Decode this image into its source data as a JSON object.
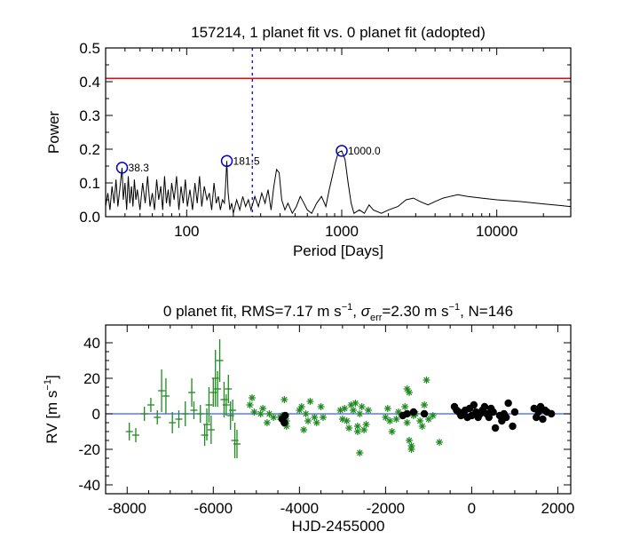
{
  "colors": {
    "threshold": "#ff0000",
    "fap_line": "#0000ff",
    "peak_circle": "#0000cc",
    "zero_line": "#3b5bff",
    "rv_green": "#1e8a1e",
    "rv_black": "#000000"
  },
  "chart_data": [
    {
      "type": "line",
      "title": "157214,  1 planet fit vs. 0 planet fit (adopted)",
      "xlabel": "Period [Days]",
      "ylabel": "Power",
      "xscale": "log",
      "xlim": [
        30,
        30000
      ],
      "ylim": [
        0.0,
        0.5
      ],
      "xticks": [
        100,
        1000,
        10000
      ],
      "xtick_labels": [
        "100",
        "1000",
        "10000"
      ],
      "yticks": [
        0.0,
        0.1,
        0.2,
        0.3,
        0.4,
        0.5
      ],
      "ytick_labels": [
        "0.0",
        "0.1",
        "0.2",
        "0.3",
        "0.4",
        "0.5"
      ],
      "threshold_power": 0.41,
      "vline_period": 265,
      "peaks": [
        {
          "period": 38.3,
          "power": 0.145,
          "label": "38.3"
        },
        {
          "period": 181.5,
          "power": 0.165,
          "label": "181.5"
        },
        {
          "period": 1000.0,
          "power": 0.195,
          "label": "1000.0"
        }
      ],
      "periodogram": [
        [
          30,
          0.03
        ],
        [
          31,
          0.07
        ],
        [
          32,
          0.02
        ],
        [
          33,
          0.09
        ],
        [
          34,
          0.04
        ],
        [
          35,
          0.11
        ],
        [
          36,
          0.03
        ],
        [
          37,
          0.08
        ],
        [
          38.3,
          0.145
        ],
        [
          39,
          0.05
        ],
        [
          40,
          0.1
        ],
        [
          41,
          0.02
        ],
        [
          42,
          0.12
        ],
        [
          43,
          0.04
        ],
        [
          44,
          0.09
        ],
        [
          45,
          0.03
        ],
        [
          46,
          0.11
        ],
        [
          47,
          0.05
        ],
        [
          48,
          0.08
        ],
        [
          50,
          0.02
        ],
        [
          52,
          0.1
        ],
        [
          54,
          0.04
        ],
        [
          56,
          0.12
        ],
        [
          58,
          0.03
        ],
        [
          60,
          0.07
        ],
        [
          62,
          0.02
        ],
        [
          64,
          0.11
        ],
        [
          66,
          0.05
        ],
        [
          68,
          0.09
        ],
        [
          70,
          0.02
        ],
        [
          72,
          0.12
        ],
        [
          74,
          0.04
        ],
        [
          76,
          0.08
        ],
        [
          78,
          0.03
        ],
        [
          80,
          0.1
        ],
        [
          83,
          0.05
        ],
        [
          86,
          0.12
        ],
        [
          89,
          0.02
        ],
        [
          92,
          0.09
        ],
        [
          95,
          0.04
        ],
        [
          98,
          0.11
        ],
        [
          101,
          0.03
        ],
        [
          105,
          0.08
        ],
        [
          109,
          0.02
        ],
        [
          113,
          0.1
        ],
        [
          117,
          0.04
        ],
        [
          121,
          0.12
        ],
        [
          125,
          0.03
        ],
        [
          130,
          0.09
        ],
        [
          135,
          0.05
        ],
        [
          140,
          0.07
        ],
        [
          145,
          0.02
        ],
        [
          150,
          0.1
        ],
        [
          155,
          0.04
        ],
        [
          160,
          0.06
        ],
        [
          165,
          0.02
        ],
        [
          170,
          0.05
        ],
        [
          175,
          0.04
        ],
        [
          178,
          0.09
        ],
        [
          181.5,
          0.165
        ],
        [
          185,
          0.07
        ],
        [
          190,
          0.02
        ],
        [
          195,
          0.04
        ],
        [
          200,
          0.01
        ],
        [
          210,
          0.05
        ],
        [
          220,
          0.02
        ],
        [
          230,
          0.06
        ],
        [
          240,
          0.03
        ],
        [
          250,
          0.05
        ],
        [
          260,
          0.02
        ],
        [
          275,
          0.06
        ],
        [
          290,
          0.03
        ],
        [
          305,
          0.07
        ],
        [
          320,
          0.04
        ],
        [
          335,
          0.08
        ],
        [
          350,
          0.02
        ],
        [
          365,
          0.09
        ],
        [
          380,
          0.14
        ],
        [
          395,
          0.13
        ],
        [
          410,
          0.05
        ],
        [
          430,
          0.02
        ],
        [
          450,
          0.04
        ],
        [
          480,
          0.01
        ],
        [
          510,
          0.03
        ],
        [
          540,
          0.06
        ],
        [
          570,
          0.04
        ],
        [
          600,
          0.02
        ],
        [
          640,
          0.01
        ],
        [
          690,
          0.04
        ],
        [
          740,
          0.06
        ],
        [
          790,
          0.03
        ],
        [
          830,
          0.08
        ],
        [
          870,
          0.12
        ],
        [
          910,
          0.16
        ],
        [
          950,
          0.19
        ],
        [
          1000,
          0.195
        ],
        [
          1050,
          0.17
        ],
        [
          1100,
          0.1
        ],
        [
          1150,
          0.04
        ],
        [
          1200,
          0.01
        ],
        [
          1300,
          0.02
        ],
        [
          1400,
          0.01
        ],
        [
          1500,
          0.035
        ],
        [
          1600,
          0.02
        ],
        [
          1800,
          0.01
        ],
        [
          2000,
          0.02
        ],
        [
          2300,
          0.03
        ],
        [
          2600,
          0.05
        ],
        [
          2900,
          0.055
        ],
        [
          3200,
          0.045
        ],
        [
          3600,
          0.035
        ],
        [
          4000,
          0.045
        ],
        [
          4500,
          0.055
        ],
        [
          5000,
          0.06
        ],
        [
          5600,
          0.065
        ],
        [
          6500,
          0.06
        ],
        [
          8000,
          0.055
        ],
        [
          10000,
          0.05
        ],
        [
          14000,
          0.045
        ],
        [
          20000,
          0.038
        ],
        [
          30000,
          0.03
        ]
      ]
    },
    {
      "type": "scatter",
      "title_main": "0 planet fit, RMS=7.17 m s",
      "title_exp1": "−1",
      "title_sep": ", ",
      "title_sigma": "σ",
      "title_sub": "err",
      "title_mid": "=2.30 m s",
      "title_exp2": "−1",
      "title_end": ", N=146",
      "xlabel": "HJD-2455000",
      "ylabel_main": "RV [m s",
      "ylabel_exp": "−1",
      "ylabel_close": "]",
      "xlim": [
        -8500,
        2300
      ],
      "ylim": [
        -45,
        50
      ],
      "xticks": [
        -8000,
        -6000,
        -4000,
        -2000,
        0,
        2000
      ],
      "xtick_labels": [
        "-8000",
        "-6000",
        "-4000",
        "-2000",
        "0",
        "2000"
      ],
      "yticks": [
        -40,
        -20,
        0,
        20,
        40
      ],
      "ytick_labels": [
        "-40",
        "-20",
        "0",
        "20",
        "40"
      ],
      "model_rv": 0,
      "series": [
        {
          "name": "green crosses with error bars",
          "marker": "cross",
          "points": [
            [
              -7950,
              -10,
              5
            ],
            [
              -7800,
              -12,
              4
            ],
            [
              -7600,
              0,
              4
            ],
            [
              -7450,
              5,
              4
            ],
            [
              -7300,
              -2,
              4
            ],
            [
              -7200,
              13,
              12
            ],
            [
              -7100,
              10,
              10
            ],
            [
              -6950,
              -5,
              6
            ],
            [
              -6800,
              -3,
              5
            ],
            [
              -6650,
              0,
              7
            ],
            [
              -6500,
              12,
              8
            ],
            [
              -6450,
              2,
              5
            ],
            [
              -6300,
              0,
              5
            ],
            [
              -6200,
              -12,
              6
            ],
            [
              -6150,
              -6,
              9
            ],
            [
              -6100,
              5,
              10
            ],
            [
              -6050,
              -9,
              8
            ],
            [
              -6000,
              12,
              8
            ],
            [
              -5950,
              20,
              16
            ],
            [
              -5900,
              14,
              10
            ],
            [
              -5850,
              30,
              12
            ],
            [
              -5750,
              8,
              10
            ],
            [
              -5700,
              5,
              6
            ],
            [
              -5650,
              14,
              8
            ],
            [
              -5600,
              -1,
              8
            ],
            [
              -5550,
              2,
              6
            ],
            [
              -5500,
              -15,
              10
            ],
            [
              -5450,
              -17,
              8
            ]
          ]
        },
        {
          "name": "green asterisks",
          "marker": "asterisk",
          "points": [
            [
              -5150,
              5
            ],
            [
              -5100,
              9
            ],
            [
              -5050,
              1
            ],
            [
              -4900,
              0
            ],
            [
              -4850,
              3
            ],
            [
              -4750,
              -5
            ],
            [
              -4700,
              0
            ],
            [
              -4600,
              -2
            ],
            [
              -4450,
              -2
            ],
            [
              -4400,
              -1
            ],
            [
              -4350,
              8
            ],
            [
              -4300,
              -7
            ],
            [
              -4300,
              -4
            ],
            [
              -4000,
              2
            ],
            [
              -3950,
              4
            ],
            [
              -3900,
              -9
            ],
            [
              -3850,
              0
            ],
            [
              -3800,
              -4
            ],
            [
              -3750,
              7
            ],
            [
              -3650,
              -2
            ],
            [
              -3600,
              -5
            ],
            [
              -3500,
              4
            ],
            [
              -3450,
              -2
            ],
            [
              -3050,
              2
            ],
            [
              -3000,
              -3
            ],
            [
              -2950,
              3
            ],
            [
              -2900,
              -4
            ],
            [
              -2850,
              -8
            ],
            [
              -2800,
              5
            ],
            [
              -2750,
              2
            ],
            [
              -2700,
              6
            ],
            [
              -2650,
              -7
            ],
            [
              -2650,
              -10
            ],
            [
              -2600,
              0
            ],
            [
              -2600,
              -22
            ],
            [
              -2550,
              4
            ],
            [
              -2500,
              -9
            ],
            [
              -2450,
              -6
            ],
            [
              -2400,
              2
            ],
            [
              -2000,
              -2
            ],
            [
              -1950,
              3
            ],
            [
              -1900,
              -4
            ],
            [
              -1850,
              -10
            ],
            [
              -1750,
              -3
            ],
            [
              -1700,
              1
            ],
            [
              -1600,
              -1
            ],
            [
              -1550,
              4
            ],
            [
              -1500,
              -5
            ],
            [
              -1500,
              14
            ],
            [
              -1450,
              12
            ],
            [
              -1450,
              -15
            ],
            [
              -1400,
              -18
            ],
            [
              -1400,
              -20
            ],
            [
              -1350,
              -1
            ],
            [
              -1300,
              0
            ],
            [
              -1200,
              -4
            ],
            [
              -1150,
              -7
            ],
            [
              -1100,
              5
            ],
            [
              -1050,
              19
            ],
            [
              -1000,
              -3
            ],
            [
              -900,
              -1
            ],
            [
              -750,
              -16
            ]
          ]
        },
        {
          "name": "black points",
          "marker": "dot",
          "points": [
            [
              -1600,
              -1
            ],
            [
              -1500,
              0
            ],
            [
              -1350,
              1
            ],
            [
              -1100,
              0
            ],
            [
              -400,
              4
            ],
            [
              -350,
              2
            ],
            [
              -300,
              1
            ],
            [
              -250,
              -1
            ],
            [
              -200,
              0
            ],
            [
              -150,
              2
            ],
            [
              -100,
              -2
            ],
            [
              -50,
              3
            ],
            [
              0,
              -1
            ],
            [
              50,
              5
            ],
            [
              100,
              1
            ],
            [
              150,
              -2
            ],
            [
              200,
              0
            ],
            [
              250,
              2
            ],
            [
              300,
              4
            ],
            [
              350,
              0
            ],
            [
              400,
              -2
            ],
            [
              450,
              3
            ],
            [
              500,
              1
            ],
            [
              550,
              -8
            ],
            [
              650,
              -1
            ],
            [
              700,
              -4
            ],
            [
              750,
              0
            ],
            [
              800,
              -2
            ],
            [
              850,
              6
            ],
            [
              950,
              -7
            ],
            [
              1000,
              1
            ],
            [
              1450,
              3
            ],
            [
              1500,
              -2
            ],
            [
              1550,
              1
            ],
            [
              1600,
              4
            ],
            [
              1650,
              -3
            ],
            [
              1700,
              2
            ],
            [
              1750,
              1
            ],
            [
              1850,
              0
            ],
            [
              -4400,
              -3
            ],
            [
              -4350,
              -5
            ],
            [
              -4330,
              -1
            ]
          ]
        }
      ]
    }
  ]
}
